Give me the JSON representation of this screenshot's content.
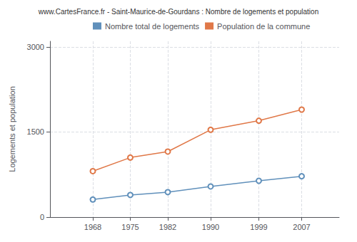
{
  "chart_data": {
    "type": "line",
    "title": "www.CartesFrance.fr - Saint-Maurice-de-Gourdans : Nombre de logements et population",
    "y_label": "Logements et population",
    "x": [
      1968,
      1975,
      1982,
      1990,
      1999,
      2007
    ],
    "series": [
      {
        "name": "Nombre total de logements",
        "color": "#6090bb",
        "values": [
          310,
          390,
          440,
          540,
          640,
          720
        ]
      },
      {
        "name": "Population de la commune",
        "color": "#e07848",
        "values": [
          810,
          1050,
          1155,
          1540,
          1700,
          1895
        ]
      }
    ],
    "xlim": [
      1960,
      2014
    ],
    "xticks": [
      1968,
      1975,
      1982,
      1990,
      1999,
      2007
    ],
    "ylim": [
      0,
      3100
    ],
    "yticks": [
      0,
      1500,
      3000
    ],
    "grid": true,
    "legend": "upper left",
    "marker": "circle"
  }
}
